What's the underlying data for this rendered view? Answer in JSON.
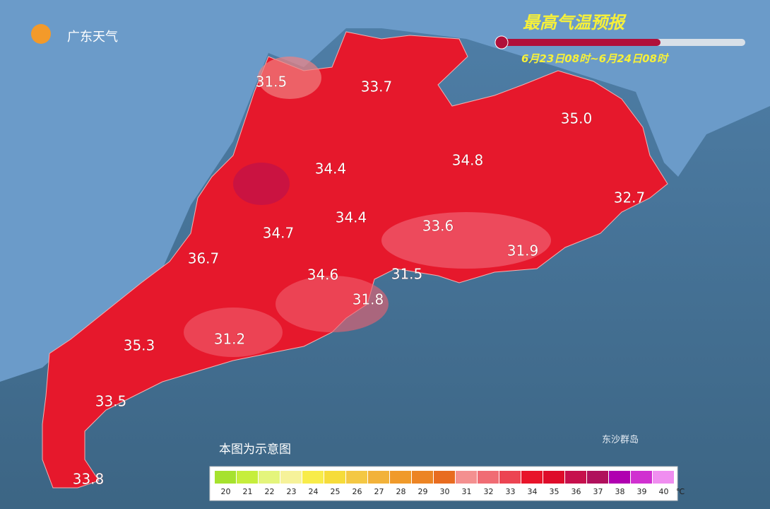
{
  "header": {
    "logo": "广东天气",
    "title": "最高气温预报",
    "subtitle": "6月23日08时~6月24日08时"
  },
  "labels": [
    "31.5",
    "33.7",
    "35.0",
    "34.4",
    "34.8",
    "32.7",
    "34.4",
    "33.6",
    "34.7",
    "36.7",
    "31.9",
    "31.5",
    "34.6",
    "31.8",
    "35.3",
    "31.2",
    "33.5",
    "33.8"
  ],
  "note": "本图为示意图",
  "island": "东沙群岛",
  "legend": {
    "unit": "℃",
    "items": [
      {
        "label": "20",
        "color": "#a6e22e"
      },
      {
        "label": "21",
        "color": "#c6ee3c"
      },
      {
        "label": "22",
        "color": "#e4f57c"
      },
      {
        "label": "23",
        "color": "#f6f29a"
      },
      {
        "label": "24",
        "color": "#f8ec4a"
      },
      {
        "label": "25",
        "color": "#f6dc3a"
      },
      {
        "label": "26",
        "color": "#f4c844"
      },
      {
        "label": "27",
        "color": "#f2b23a"
      },
      {
        "label": "28",
        "color": "#f09a2a"
      },
      {
        "label": "29",
        "color": "#ec8424"
      },
      {
        "label": "30",
        "color": "#e86c20"
      },
      {
        "label": "31",
        "color": "#f49090"
      },
      {
        "label": "32",
        "color": "#f06c74"
      },
      {
        "label": "33",
        "color": "#ec4452"
      },
      {
        "label": "34",
        "color": "#e8142a"
      },
      {
        "label": "35",
        "color": "#de0c2a"
      },
      {
        "label": "36",
        "color": "#c6104c"
      },
      {
        "label": "37",
        "color": "#b0105c"
      },
      {
        "label": "38",
        "color": "#b000b0"
      },
      {
        "label": "39",
        "color": "#d030d0"
      },
      {
        "label": "40",
        "color": "#f08ef0"
      }
    ]
  }
}
